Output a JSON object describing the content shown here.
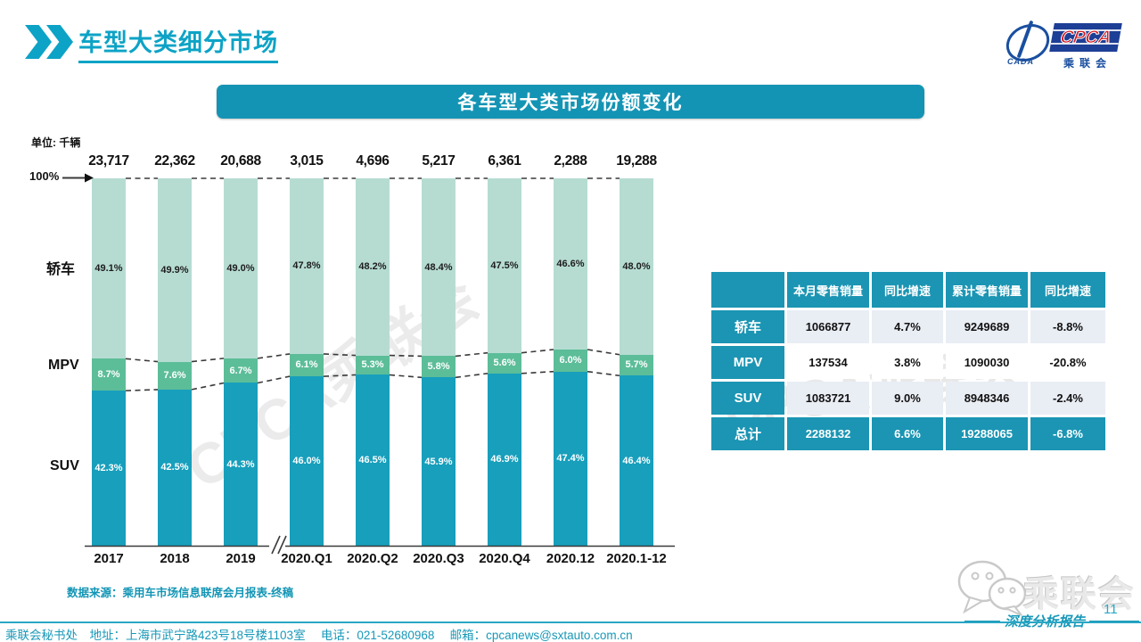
{
  "header": {
    "title": "车型大类细分市场"
  },
  "logo": {
    "cpca": "CPCA",
    "cada": "CADA",
    "sub": "乘联会"
  },
  "banner": {
    "title": "各车型大类市场份额变化"
  },
  "icons": {
    "title_chevron": "double-chevron-right",
    "axis_arrow": "right-arrow",
    "wechat": "chat-bubbles"
  },
  "chart_data": {
    "type": "bar",
    "subtype": "100%-stacked-column",
    "unit_label": "单位: 千辆",
    "top_axis_label": "100%",
    "categories": [
      "2017",
      "2018",
      "2019",
      "2020.Q1",
      "2020.Q2",
      "2020.Q3",
      "2020.Q4",
      "2020.12",
      "2020.1-12"
    ],
    "totals": [
      "23,717",
      "22,362",
      "20,688",
      "3,015",
      "4,696",
      "5,217",
      "6,361",
      "2,288",
      "19,288"
    ],
    "series": [
      {
        "name": "轿车",
        "color": "#b6dcd2",
        "label_color": "#1d1d1d",
        "values": [
          49.1,
          49.9,
          49.0,
          47.8,
          48.2,
          48.4,
          47.5,
          46.6,
          48.0
        ]
      },
      {
        "name": "MPV",
        "color": "#5cbd99",
        "label_color": "#ffffff",
        "values": [
          8.7,
          7.6,
          6.7,
          6.1,
          5.3,
          5.8,
          5.6,
          6.0,
          5.7
        ]
      },
      {
        "name": "SUV",
        "color": "#179fbc",
        "label_color": "#ffffff",
        "values": [
          42.3,
          42.5,
          44.3,
          46.0,
          46.5,
          45.9,
          46.9,
          47.4,
          46.4
        ]
      }
    ],
    "ylim": [
      0,
      100
    ],
    "grid": false,
    "legend_position": "left",
    "axis_break_between": [
      "2019",
      "2020.Q1"
    ],
    "source_note": "数据来源：乘用车市场信息联席会月报表-终稿"
  },
  "table": {
    "headers": [
      "",
      "本月零售销量",
      "同比增速",
      "累计零售销量",
      "同比增速"
    ],
    "rows": [
      {
        "label": "轿车",
        "cells": [
          "1066877",
          "4.7%",
          "9249689",
          "-8.8%"
        ]
      },
      {
        "label": "MPV",
        "cells": [
          "137534",
          "3.8%",
          "1090030",
          "-20.8%"
        ]
      },
      {
        "label": "SUV",
        "cells": [
          "1083721",
          "9.0%",
          "8948346",
          "-2.4%"
        ]
      },
      {
        "label": "总计",
        "cells": [
          "2288132",
          "6.6%",
          "19288065",
          "-6.8%"
        ]
      }
    ]
  },
  "watermark": {
    "text": "CPCA乘联会"
  },
  "footer": {
    "page_number": "11",
    "report_label": "深度分析报告",
    "wechat_label": "乘联会",
    "contact": "乘联会秘书处　地址：上海市武宁路423号18号楼1103室　 电话：021-52680968　 邮箱：cpcanews@sxtauto.com.cn"
  },
  "colors": {
    "accent_teal": "#1494b4",
    "title_teal": "#0da3c6",
    "sedan": "#b6dcd2",
    "mpv": "#5cbd99",
    "suv": "#179fbc",
    "table_teal": "#1b95b3",
    "table_shaded_row": "#e9edf4",
    "logo_blue": "#1a4fa0",
    "logo_red": "#d21a21"
  }
}
